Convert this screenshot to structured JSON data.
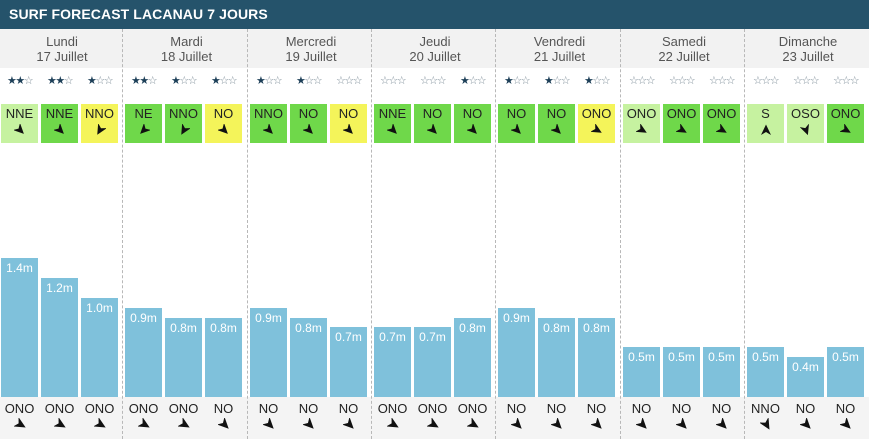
{
  "title": "SURF FORECAST LACANAU 7 JOURS",
  "colors": {
    "header_bg": "#25536b",
    "bar": "#7fc1db",
    "wind_light": "#c6f2a0",
    "wind_green": "#6fd84a",
    "wind_yellow": "#f4f45a"
  },
  "chart_data": {
    "type": "bar",
    "ylabel": "",
    "unit": "m",
    "ylim": [
      0,
      1.5
    ],
    "days": [
      {
        "name": "Lundi",
        "date": "17 Juillet",
        "slots": [
          {
            "stars": 2,
            "wind": "NNE",
            "wind_color": "light",
            "wind_rot": 135,
            "height": 1.4,
            "label": "1.4m",
            "swell": "ONO",
            "swell_rot": 300
          },
          {
            "stars": 2,
            "wind": "NNE",
            "wind_color": "green",
            "wind_rot": 135,
            "height": 1.2,
            "label": "1.2m",
            "swell": "ONO",
            "swell_rot": 300
          },
          {
            "stars": 1,
            "wind": "NNO",
            "wind_color": "yellow",
            "wind_rot": 210,
            "height": 1.0,
            "label": "1.0m",
            "swell": "ONO",
            "swell_rot": 300
          }
        ]
      },
      {
        "name": "Mardi",
        "date": "18 Juillet",
        "slots": [
          {
            "stars": 2,
            "wind": "NE",
            "wind_color": "green",
            "wind_rot": 225,
            "height": 0.9,
            "label": "0.9m",
            "swell": "ONO",
            "swell_rot": 300
          },
          {
            "stars": 1,
            "wind": "NNO",
            "wind_color": "green",
            "wind_rot": 210,
            "height": 0.8,
            "label": "0.8m",
            "swell": "ONO",
            "swell_rot": 300
          },
          {
            "stars": 1,
            "wind": "NO",
            "wind_color": "yellow",
            "wind_rot": 135,
            "height": 0.8,
            "label": "0.8m",
            "swell": "NO",
            "swell_rot": 315
          }
        ]
      },
      {
        "name": "Mercredi",
        "date": "19 Juillet",
        "slots": [
          {
            "stars": 1,
            "wind": "NNO",
            "wind_color": "green",
            "wind_rot": 135,
            "height": 0.9,
            "label": "0.9m",
            "swell": "NO",
            "swell_rot": 315
          },
          {
            "stars": 1,
            "wind": "NO",
            "wind_color": "green",
            "wind_rot": 135,
            "height": 0.8,
            "label": "0.8m",
            "swell": "NO",
            "swell_rot": 315
          },
          {
            "stars": 0,
            "wind": "NO",
            "wind_color": "yellow",
            "wind_rot": 135,
            "height": 0.7,
            "label": "0.7m",
            "swell": "NO",
            "swell_rot": 315
          }
        ]
      },
      {
        "name": "Jeudi",
        "date": "20 Juillet",
        "slots": [
          {
            "stars": 0,
            "wind": "NNE",
            "wind_color": "green",
            "wind_rot": 135,
            "height": 0.7,
            "label": "0.7m",
            "swell": "ONO",
            "swell_rot": 300
          },
          {
            "stars": 0,
            "wind": "NO",
            "wind_color": "green",
            "wind_rot": 135,
            "height": 0.7,
            "label": "0.7m",
            "swell": "ONO",
            "swell_rot": 300
          },
          {
            "stars": 1,
            "wind": "NO",
            "wind_color": "green",
            "wind_rot": 135,
            "height": 0.8,
            "label": "0.8m",
            "swell": "ONO",
            "swell_rot": 300
          }
        ]
      },
      {
        "name": "Vendredi",
        "date": "21 Juillet",
        "slots": [
          {
            "stars": 1,
            "wind": "NO",
            "wind_color": "green",
            "wind_rot": 135,
            "height": 0.9,
            "label": "0.9m",
            "swell": "NO",
            "swell_rot": 315
          },
          {
            "stars": 1,
            "wind": "NO",
            "wind_color": "green",
            "wind_rot": 135,
            "height": 0.8,
            "label": "0.8m",
            "swell": "NO",
            "swell_rot": 315
          },
          {
            "stars": 1,
            "wind": "ONO",
            "wind_color": "yellow",
            "wind_rot": 120,
            "height": 0.8,
            "label": "0.8m",
            "swell": "NO",
            "swell_rot": 315
          }
        ]
      },
      {
        "name": "Samedi",
        "date": "22 Juillet",
        "slots": [
          {
            "stars": 0,
            "wind": "ONO",
            "wind_color": "light",
            "wind_rot": 120,
            "height": 0.5,
            "label": "0.5m",
            "swell": "NO",
            "swell_rot": 315
          },
          {
            "stars": 0,
            "wind": "ONO",
            "wind_color": "green",
            "wind_rot": 120,
            "height": 0.5,
            "label": "0.5m",
            "swell": "NO",
            "swell_rot": 315
          },
          {
            "stars": 0,
            "wind": "ONO",
            "wind_color": "green",
            "wind_rot": 120,
            "height": 0.5,
            "label": "0.5m",
            "swell": "NO",
            "swell_rot": 315
          }
        ]
      },
      {
        "name": "Dimanche",
        "date": "23 Juillet",
        "slots": [
          {
            "stars": 0,
            "wind": "S",
            "wind_color": "light",
            "wind_rot": 0,
            "height": 0.5,
            "label": "0.5m",
            "swell": "NNO",
            "swell_rot": 330
          },
          {
            "stars": 0,
            "wind": "OSO",
            "wind_color": "light",
            "wind_rot": 160,
            "height": 0.4,
            "label": "0.4m",
            "swell": "NO",
            "swell_rot": 315
          },
          {
            "stars": 0,
            "wind": "ONO",
            "wind_color": "green",
            "wind_rot": 120,
            "height": 0.5,
            "label": "0.5m",
            "swell": "NO",
            "swell_rot": 315
          }
        ]
      }
    ]
  }
}
